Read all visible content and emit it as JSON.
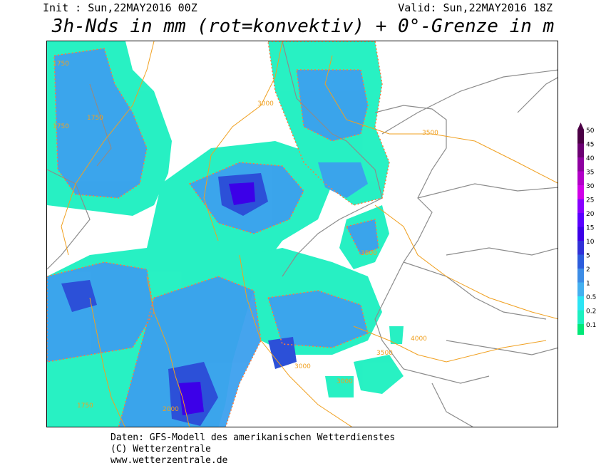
{
  "header": {
    "init": "Init : Sun,22MAY2016 00Z",
    "valid": "Valid: Sun,22MAY2016 18Z",
    "title": "3h-Nds in mm (rot=konvektiv) + 0°-Grenze in m"
  },
  "legend": {
    "levels": [
      {
        "label": "50",
        "color": "#4b0045"
      },
      {
        "label": "45",
        "color": "#6b0072"
      },
      {
        "label": "40",
        "color": "#8e00a0"
      },
      {
        "label": "35",
        "color": "#b200c8"
      },
      {
        "label": "30",
        "color": "#d000e8"
      },
      {
        "label": "25",
        "color": "#8800ff"
      },
      {
        "label": "20",
        "color": "#5a00ff"
      },
      {
        "label": "15",
        "color": "#3c00e8"
      },
      {
        "label": "10",
        "color": "#3030d8"
      },
      {
        "label": "5",
        "color": "#2c5cdc"
      },
      {
        "label": "2",
        "color": "#3c8ce6"
      },
      {
        "label": "1",
        "color": "#44b0f0"
      },
      {
        "label": "0.5",
        "color": "#2ce4f4"
      },
      {
        "label": "0.2",
        "color": "#1cf0c0"
      },
      {
        "label": "0.1",
        "color": "#00e878"
      }
    ]
  },
  "map": {
    "freezing_level_labels": [
      "1750",
      "1750",
      "1750",
      "3000",
      "3500",
      "3500",
      "4000",
      "3500",
      "3000",
      "3000",
      "2000",
      "1750"
    ],
    "colors": {
      "coast": "#8c8c8c",
      "freezing_level": "#f0a020",
      "convective": "#ff7a3c"
    }
  },
  "footer": {
    "line1": "Daten: GFS-Modell des amerikanischen Wetterdienstes",
    "line2": "(C) Wetterzentrale",
    "line3": "www.wetterzentrale.de"
  }
}
